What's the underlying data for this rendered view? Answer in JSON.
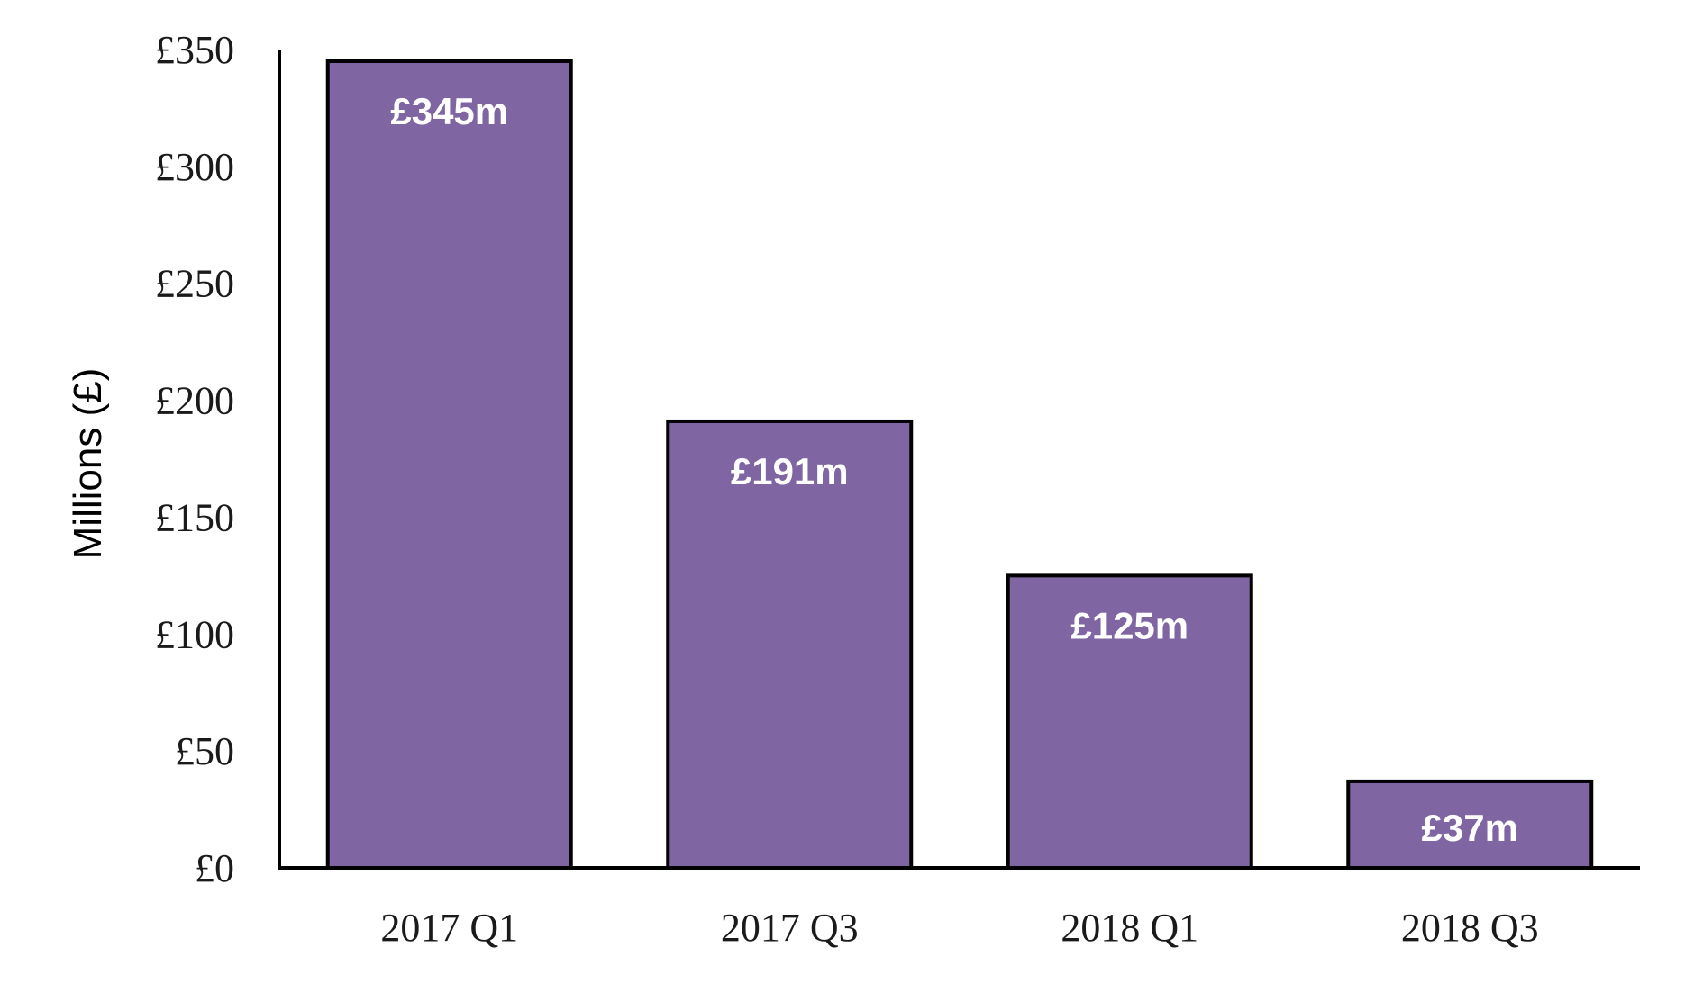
{
  "chart_data": {
    "type": "bar",
    "title": "",
    "xlabel": "",
    "ylabel": "Millions (£)",
    "categories": [
      "2017 Q1",
      "2017 Q3",
      "2018 Q1",
      "2018 Q3"
    ],
    "values": [
      345,
      191,
      125,
      37
    ],
    "data_labels": [
      "£345m",
      "£191m",
      "£125m",
      "£37m"
    ],
    "ylim": [
      0,
      350
    ],
    "yticks": [
      0,
      50,
      100,
      150,
      200,
      250,
      300,
      350
    ],
    "ytick_labels": [
      "£0",
      "£50",
      "£100",
      "£150",
      "£200",
      "£250",
      "£300",
      "£350"
    ],
    "grid": false,
    "legend": "none",
    "bar_color": "#7f65a1"
  }
}
